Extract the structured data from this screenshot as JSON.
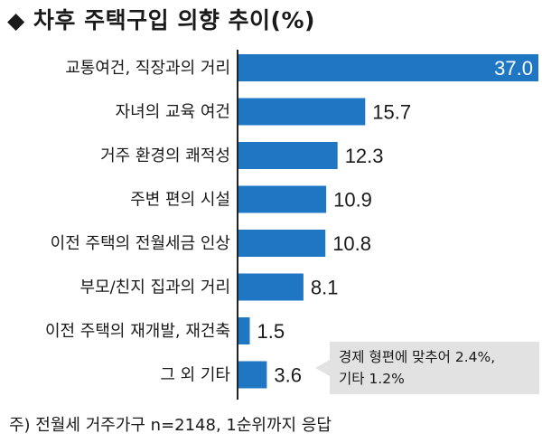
{
  "title": "◆ 차후 주택구입 의향 추이(%)",
  "note": "경제 형편에 맞추어 2.4%,\n기타 1.2%",
  "footnote": "주) 전월세 거주가구 n=2148, 1순위까지 응답",
  "colors": {
    "bar": "#1f77c4",
    "axis": "#222222",
    "note_bg": "#e2e2e2"
  },
  "chart_data": {
    "type": "bar",
    "orientation": "horizontal",
    "title": "◆ 차후 주택구입 의향 추이(%)",
    "categories": [
      "교통여건, 직장과의 거리",
      "자녀의 교육 여건",
      "거주 환경의 쾌적성",
      "주변 편의 시설",
      "이전 주택의 전월세금 인상",
      "부모/친지 집과의 거리",
      "이전 주택의 재개발, 재건축",
      "그 외 기타"
    ],
    "values": [
      37.0,
      15.7,
      12.3,
      10.9,
      10.8,
      8.1,
      1.5,
      3.6
    ],
    "value_labels": [
      "37.0",
      "15.7",
      "12.3",
      "10.9",
      "10.8",
      "8.1",
      "1.5",
      "3.6"
    ],
    "xlim": [
      0,
      37.0
    ],
    "grid": false,
    "legend": "none"
  }
}
